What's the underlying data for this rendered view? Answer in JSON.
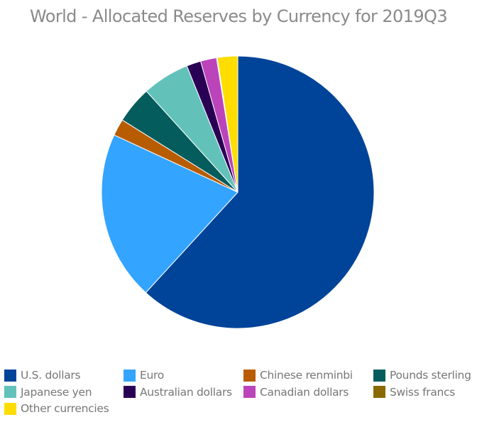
{
  "chart_data": {
    "type": "pie",
    "title": "World - Allocated Reserves by Currency for 2019Q3",
    "slices": [
      {
        "label": "U.S. dollars",
        "value": 61.8,
        "color": "#004499"
      },
      {
        "label": "Euro",
        "value": 20.1,
        "color": "#33a4ff"
      },
      {
        "label": "Chinese renminbi",
        "value": 2.0,
        "color": "#b85c00"
      },
      {
        "label": "Pounds sterling",
        "value": 4.4,
        "color": "#045c5c"
      },
      {
        "label": "Japanese yen",
        "value": 5.6,
        "color": "#62c2ba"
      },
      {
        "label": "Australian dollars",
        "value": 1.7,
        "color": "#2a0055"
      },
      {
        "label": "Canadian dollars",
        "value": 1.9,
        "color": "#bb44bb"
      },
      {
        "label": "Swiss francs",
        "value": 0.1,
        "color": "#8a6a00"
      },
      {
        "label": "Other currencies",
        "value": 2.4,
        "color": "#ffdd00"
      }
    ],
    "legend_position": "bottom"
  }
}
